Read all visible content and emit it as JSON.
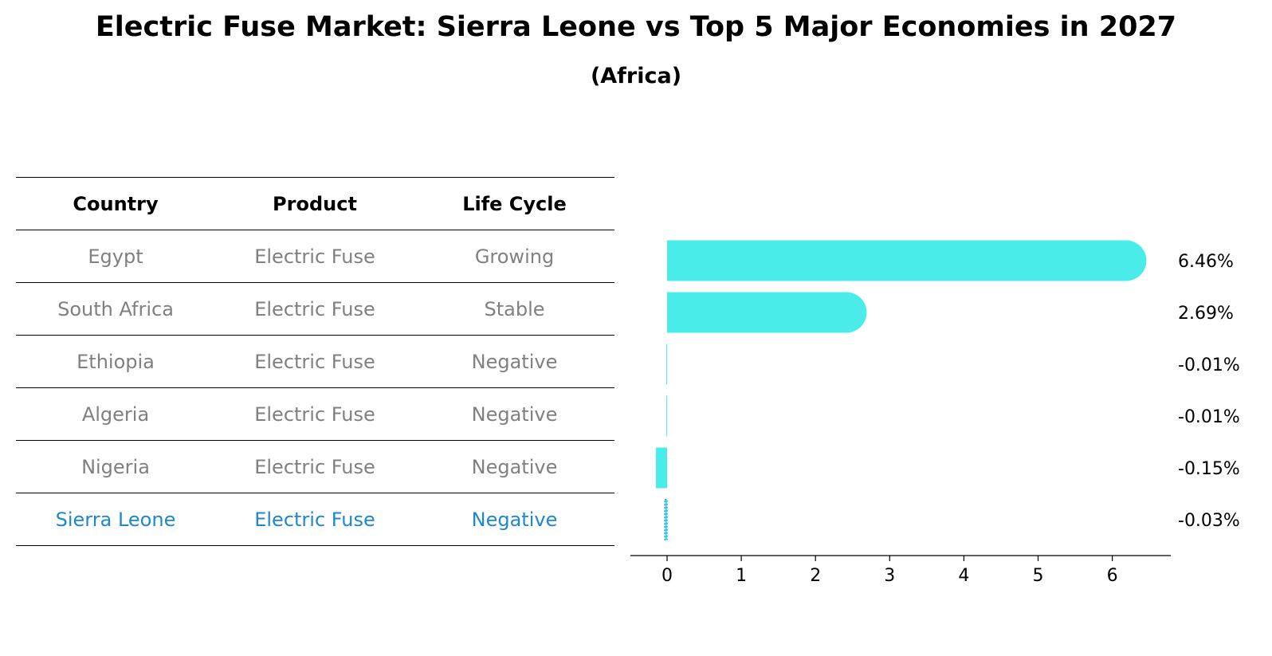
{
  "title": "Electric Fuse Market: Sierra Leone vs Top 5 Major Economies in 2027",
  "subtitle": "(Africa)",
  "table": {
    "headers": [
      "Country",
      "Product",
      "Life Cycle"
    ],
    "rows": [
      {
        "country": "Egypt",
        "product": "Electric Fuse",
        "life_cycle": "Growing"
      },
      {
        "country": "South Africa",
        "product": "Electric Fuse",
        "life_cycle": "Stable"
      },
      {
        "country": "Ethiopia",
        "product": "Electric Fuse",
        "life_cycle": "Negative"
      },
      {
        "country": "Algeria",
        "product": "Electric Fuse",
        "life_cycle": "Negative"
      },
      {
        "country": "Nigeria",
        "product": "Electric Fuse",
        "life_cycle": "Negative"
      },
      {
        "country": "Sierra Leone",
        "product": "Electric Fuse",
        "life_cycle": "Negative"
      }
    ]
  },
  "colors": {
    "bar": "#4aecea",
    "highlight": "#1f87d0",
    "other_text": "#808080"
  },
  "chart_data": {
    "type": "bar",
    "orientation": "horizontal",
    "categories": [
      "Egypt",
      "South Africa",
      "Ethiopia",
      "Algeria",
      "Nigeria",
      "Sierra Leone"
    ],
    "values": [
      6.46,
      2.69,
      -0.01,
      -0.01,
      -0.15,
      -0.03
    ],
    "value_labels": [
      "6.46%",
      "2.69%",
      "-0.01%",
      "-0.01%",
      "-0.15%",
      "-0.03%"
    ],
    "highlight_category": "Sierra Leone",
    "xticks": [
      0,
      1,
      2,
      3,
      4,
      5,
      6
    ],
    "xlim": [
      -0.48,
      6.8
    ],
    "grid": false
  }
}
